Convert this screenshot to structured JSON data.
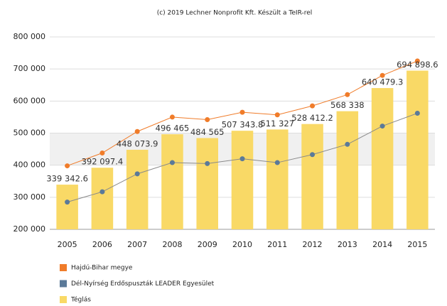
{
  "chart_data": {
    "type": "bar",
    "title": "(c) 2019 Lechner Nonprofit Kft. Készült a TeIR-rel",
    "categories": [
      "2005",
      "2006",
      "2007",
      "2008",
      "2009",
      "2010",
      "2011",
      "2012",
      "2013",
      "2014",
      "2015"
    ],
    "ylim": [
      200000,
      800000
    ],
    "yticks": [
      {
        "value": 200000,
        "label": "200 000"
      },
      {
        "value": 300000,
        "label": "300 000"
      },
      {
        "value": 400000,
        "label": "400 000"
      },
      {
        "value": 500000,
        "label": "500 000"
      },
      {
        "value": 600000,
        "label": "600 000"
      },
      {
        "value": 700000,
        "label": "700 000"
      },
      {
        "value": 800000,
        "label": "800 000"
      }
    ],
    "series": [
      {
        "name": "Hajdú-Bihar megye",
        "type": "line",
        "color": "#f07c2a",
        "values": [
          398000,
          438000,
          505000,
          550000,
          542000,
          565000,
          557000,
          585000,
          620000,
          680000,
          725000
        ]
      },
      {
        "name": "Dél-Nyírség Erdőspuszták LEADER Egyesület",
        "type": "line",
        "color": "#5b7a99",
        "values": [
          285000,
          317000,
          373000,
          408000,
          405000,
          420000,
          408000,
          433000,
          465000,
          522000,
          562000
        ]
      },
      {
        "name": "Téglás",
        "type": "bar",
        "color": "#f9d966",
        "values": [
          339342.6,
          392097.4,
          448073.9,
          496465,
          484565,
          507343.8,
          511327,
          528412.2,
          568338,
          640479.3,
          694898.6
        ],
        "value_labels": [
          "339 342.6",
          "392 097.4",
          "448 073.9",
          "496 465",
          "484 565",
          "507 343.8",
          "511 327",
          "528 412.2",
          "568 338",
          "640 479.3",
          "694 898.6"
        ]
      }
    ]
  }
}
